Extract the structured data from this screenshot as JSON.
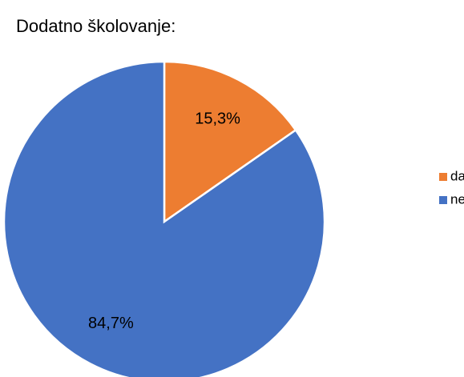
{
  "chart_data": {
    "type": "pie",
    "title": "Dodatno školovanje:",
    "categories": [
      "da",
      "ne"
    ],
    "values": [
      15.3,
      84.7
    ],
    "value_labels": [
      "15,3%",
      "84,7%"
    ],
    "colors": [
      "#ed7d31",
      "#4472c4"
    ],
    "legend": "right"
  }
}
